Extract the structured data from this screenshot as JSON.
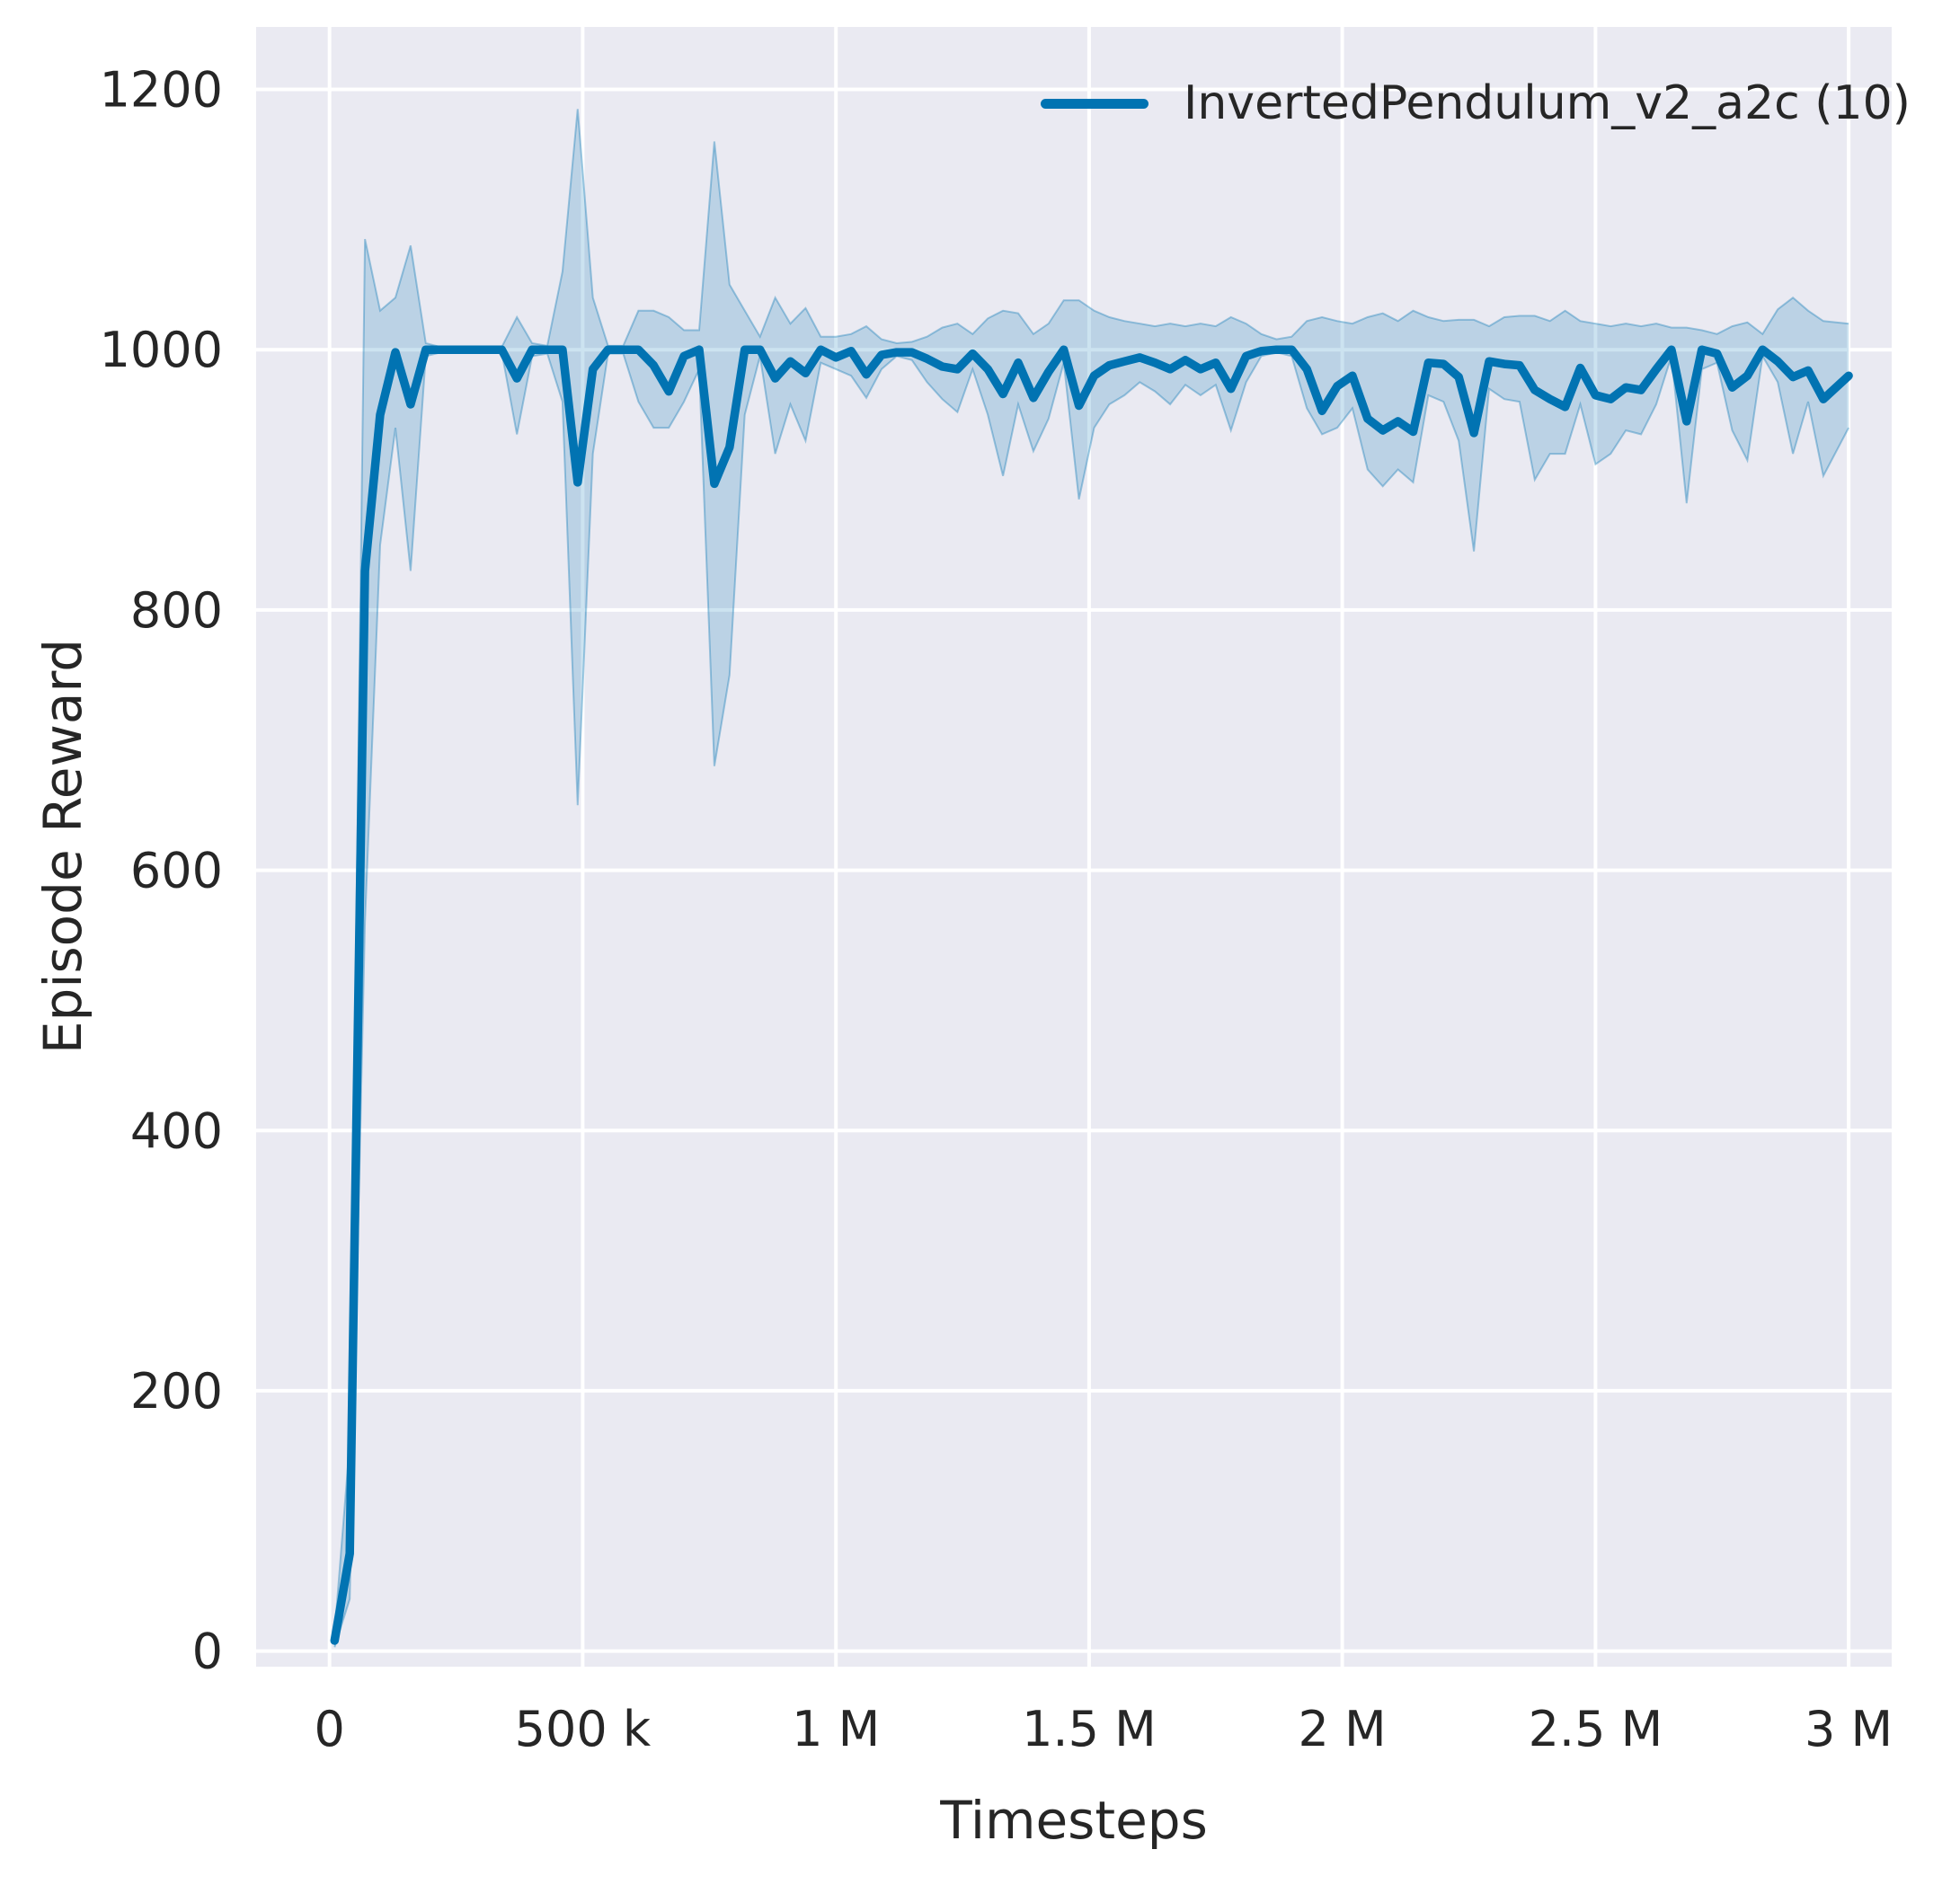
{
  "figure": {
    "background": "#ffffff",
    "axes_background": "#eaeaf2",
    "grid_color": "#ffffff",
    "text_color": "#262626"
  },
  "chart_data": {
    "type": "line",
    "title": "",
    "xlabel": "Timesteps",
    "ylabel": "Episode Reward",
    "xlim": [
      -145000,
      3085000
    ],
    "ylim": [
      -12,
      1248
    ],
    "grid": true,
    "legend": {
      "position": "upper right",
      "frame": false,
      "entries": [
        {
          "label": "InvertedPendulum_v2_a2c (10)",
          "color": "#0173b2"
        }
      ]
    },
    "x_ticks": [
      {
        "value": 0,
        "label": "0"
      },
      {
        "value": 500000,
        "label": "500 k"
      },
      {
        "value": 1000000,
        "label": "1 M"
      },
      {
        "value": 1500000,
        "label": "1.5 M"
      },
      {
        "value": 2000000,
        "label": "2 M"
      },
      {
        "value": 2500000,
        "label": "2.5 M"
      },
      {
        "value": 3000000,
        "label": "3 M"
      }
    ],
    "y_ticks": [
      {
        "value": 0,
        "label": "0"
      },
      {
        "value": 200,
        "label": "200"
      },
      {
        "value": 400,
        "label": "400"
      },
      {
        "value": 600,
        "label": "600"
      },
      {
        "value": 800,
        "label": "800"
      },
      {
        "value": 1000,
        "label": "1000"
      },
      {
        "value": 1200,
        "label": "1200"
      }
    ],
    "series": [
      {
        "name": "InvertedPendulum_v2_a2c (10)",
        "color": "#0173b2",
        "band_fill_alpha": 0.2,
        "x": [
          10000,
          40000,
          70000,
          100000,
          130000,
          160000,
          190000,
          220000,
          250000,
          280000,
          310000,
          340000,
          370000,
          400000,
          430000,
          460000,
          490000,
          520000,
          550000,
          580000,
          610000,
          640000,
          670000,
          700000,
          730000,
          760000,
          790000,
          820000,
          850000,
          880000,
          910000,
          940000,
          970000,
          1000000,
          1030000,
          1060000,
          1090000,
          1120000,
          1150000,
          1180000,
          1210000,
          1240000,
          1270000,
          1300000,
          1330000,
          1360000,
          1390000,
          1420000,
          1450000,
          1480000,
          1510000,
          1540000,
          1570000,
          1600000,
          1630000,
          1660000,
          1690000,
          1720000,
          1750000,
          1780000,
          1810000,
          1840000,
          1870000,
          1900000,
          1930000,
          1960000,
          1990000,
          2020000,
          2050000,
          2080000,
          2110000,
          2140000,
          2170000,
          2200000,
          2230000,
          2260000,
          2290000,
          2320000,
          2350000,
          2380000,
          2410000,
          2440000,
          2470000,
          2500000,
          2530000,
          2560000,
          2590000,
          2620000,
          2650000,
          2680000,
          2710000,
          2740000,
          2770000,
          2800000,
          2830000,
          2860000,
          2890000,
          2920000,
          2950000,
          3000000
        ],
        "mean": [
          8,
          75,
          830,
          950,
          998,
          958,
          1000,
          1000,
          1000,
          1000,
          1000,
          1000,
          978,
          1000,
          1000,
          1000,
          898,
          985,
          1000,
          1000,
          1000,
          988,
          968,
          995,
          1000,
          897,
          925,
          1000,
          1000,
          978,
          991,
          982,
          1000,
          994,
          999,
          981,
          996,
          998,
          998,
          993,
          987,
          985,
          997,
          985,
          966,
          990,
          963,
          983,
          1000,
          957,
          980,
          988,
          991,
          994,
          990,
          985,
          992,
          985,
          990,
          970,
          995,
          999,
          1000,
          1000,
          985,
          953,
          972,
          980,
          947,
          938,
          945,
          937,
          990,
          989,
          979,
          936,
          991,
          989,
          988,
          969,
          962,
          956,
          986,
          965,
          962,
          971,
          969,
          985,
          1000,
          945,
          1000,
          997,
          971,
          980,
          1000,
          991,
          979,
          984,
          962,
          980
        ],
        "band_low": [
          3,
          40,
          560,
          850,
          940,
          830,
          995,
          998,
          998,
          998,
          998,
          998,
          935,
          995,
          997,
          960,
          650,
          920,
          997,
          997,
          960,
          940,
          940,
          960,
          985,
          680,
          750,
          950,
          995,
          920,
          958,
          930,
          990,
          985,
          980,
          963,
          985,
          995,
          992,
          975,
          962,
          952,
          985,
          950,
          903,
          958,
          922,
          947,
          990,
          885,
          940,
          958,
          965,
          975,
          968,
          958,
          973,
          965,
          973,
          938,
          975,
          995,
          998,
          995,
          955,
          935,
          940,
          955,
          908,
          895,
          908,
          898,
          965,
          960,
          930,
          845,
          970,
          962,
          960,
          900,
          920,
          920,
          958,
          912,
          920,
          938,
          935,
          958,
          995,
          882,
          985,
          990,
          938,
          915,
          995,
          975,
          920,
          960,
          903,
          940
        ],
        "band_high": [
          14,
          160,
          1085,
          1030,
          1040,
          1080,
          1005,
          1002,
          1002,
          1002,
          1002,
          1002,
          1025,
          1005,
          1003,
          1060,
          1185,
          1040,
          1003,
          1003,
          1030,
          1030,
          1025,
          1015,
          1015,
          1160,
          1050,
          1030,
          1010,
          1040,
          1020,
          1032,
          1010,
          1010,
          1012,
          1018,
          1008,
          1005,
          1006,
          1010,
          1017,
          1020,
          1012,
          1024,
          1030,
          1028,
          1012,
          1020,
          1038,
          1038,
          1030,
          1025,
          1022,
          1020,
          1018,
          1020,
          1018,
          1020,
          1018,
          1025,
          1020,
          1012,
          1008,
          1010,
          1022,
          1025,
          1022,
          1020,
          1025,
          1028,
          1022,
          1030,
          1025,
          1022,
          1023,
          1023,
          1018,
          1025,
          1026,
          1026,
          1022,
          1030,
          1022,
          1020,
          1018,
          1020,
          1018,
          1020,
          1017,
          1017,
          1015,
          1012,
          1018,
          1021,
          1012,
          1031,
          1040,
          1030,
          1022,
          1020
        ]
      }
    ]
  }
}
